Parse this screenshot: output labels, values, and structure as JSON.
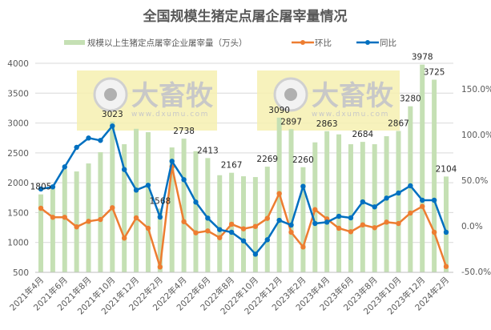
{
  "chart_data": {
    "type": "bar+line",
    "title": "全国规模生猪定点屠企屠宰量情况",
    "categories": [
      "2021年4月",
      "2021年5月",
      "2021年6月",
      "2021年7月",
      "2021年8月",
      "2021年9月",
      "2021年10月",
      "2021年11月",
      "2021年12月",
      "2022年1月",
      "2022年2月",
      "2022年3月",
      "2022年4月",
      "2022年5月",
      "2022年6月",
      "2022年7月",
      "2022年8月",
      "2022年9月",
      "2022年10月",
      "2022年11月",
      "2022年12月",
      "2023年1月",
      "2023年2月",
      "2023年3月",
      "2023年4月",
      "2023年5月",
      "2023年6月",
      "2023年7月",
      "2023年8月",
      "2023年9月",
      "2023年10月",
      "2023年11月",
      "2023年12月",
      "2024年1月",
      "2024年2月"
    ],
    "x_tick_labels": [
      "2021年4月",
      "2021年6月",
      "2021年8月",
      "2021年10月",
      "2021年12月",
      "2022年2月",
      "2022年4月",
      "2022年6月",
      "2022年8月",
      "2022年10月",
      "2022年12月",
      "2023年2月",
      "2023年4月",
      "2023年6月",
      "2023年8月",
      "2023年10月",
      "2023年12月",
      "2024年2月"
    ],
    "series": [
      {
        "name": "规模以上生猪定点屠宰企业屠宰量（万头）",
        "type": "bar",
        "axis": "left",
        "color": "#c5e0b4",
        "values": [
          1805,
          1900,
          2230,
          2189,
          2323,
          2511,
          3023,
          2645,
          2903,
          2846,
          1568,
          2591,
          2738,
          2528,
          2413,
          2126,
          2167,
          2108,
          2095,
          2269,
          3090,
          2897,
          2260,
          2676,
          2863,
          2810,
          2645,
          2684,
          2645,
          2779,
          2867,
          3280,
          3978,
          3725,
          2104
        ],
        "labeled": [
          1805,
          null,
          null,
          null,
          null,
          null,
          3023,
          null,
          null,
          null,
          1568,
          null,
          2738,
          null,
          2413,
          null,
          2167,
          null,
          null,
          2269,
          3090,
          2897,
          2260,
          null,
          2863,
          null,
          null,
          2684,
          null,
          null,
          2867,
          3280,
          3978,
          3725,
          2104
        ]
      },
      {
        "name": "环比",
        "type": "line",
        "axis": "right",
        "unit": "%",
        "color": "#ed7d31",
        "values": [
          19.3,
          9.4,
          9.4,
          -1.1,
          5.0,
          7.0,
          19.9,
          -13.4,
          8.8,
          -2.6,
          -45.0,
          64.9,
          4.6,
          -7.6,
          -5.5,
          -12.9,
          1.8,
          -3.2,
          -0.6,
          8.2,
          35.4,
          -7.0,
          -23.1,
          17.8,
          7.6,
          -2.6,
          -6.4,
          1.1,
          -2.0,
          4.1,
          2.6,
          14.0,
          21.3,
          -7.0,
          -44.5
        ]
      },
      {
        "name": "同比",
        "type": "line",
        "axis": "right",
        "unit": "%",
        "color": "#0070c0",
        "values": [
          40.4,
          42.7,
          64.6,
          86.0,
          96.2,
          93.6,
          109.4,
          61.7,
          39.2,
          44.5,
          9.6,
          70.8,
          50.6,
          26.0,
          8.5,
          -4.1,
          -7.0,
          -16.4,
          -31.0,
          -15.2,
          6.1,
          0.9,
          43.3,
          2.6,
          4.1,
          10.5,
          8.8,
          26.3,
          20.8,
          30.4,
          36.0,
          43.9,
          28.1,
          28.1,
          -7.0
        ]
      }
    ],
    "y_left": {
      "range": [
        500,
        4000
      ],
      "ticks": [
        "500",
        "1000",
        "1500",
        "2000",
        "2500",
        "3000",
        "3500",
        "4000"
      ]
    },
    "y_right": {
      "range": [
        -50,
        175
      ],
      "ticks": [
        "-50.0%",
        "0.0%",
        "50.0%",
        "100.0%",
        "150.0%"
      ]
    },
    "grid": true,
    "legend": "top"
  },
  "watermark": {
    "brand": "大畜牧",
    "url": "www.dxumu.com"
  }
}
